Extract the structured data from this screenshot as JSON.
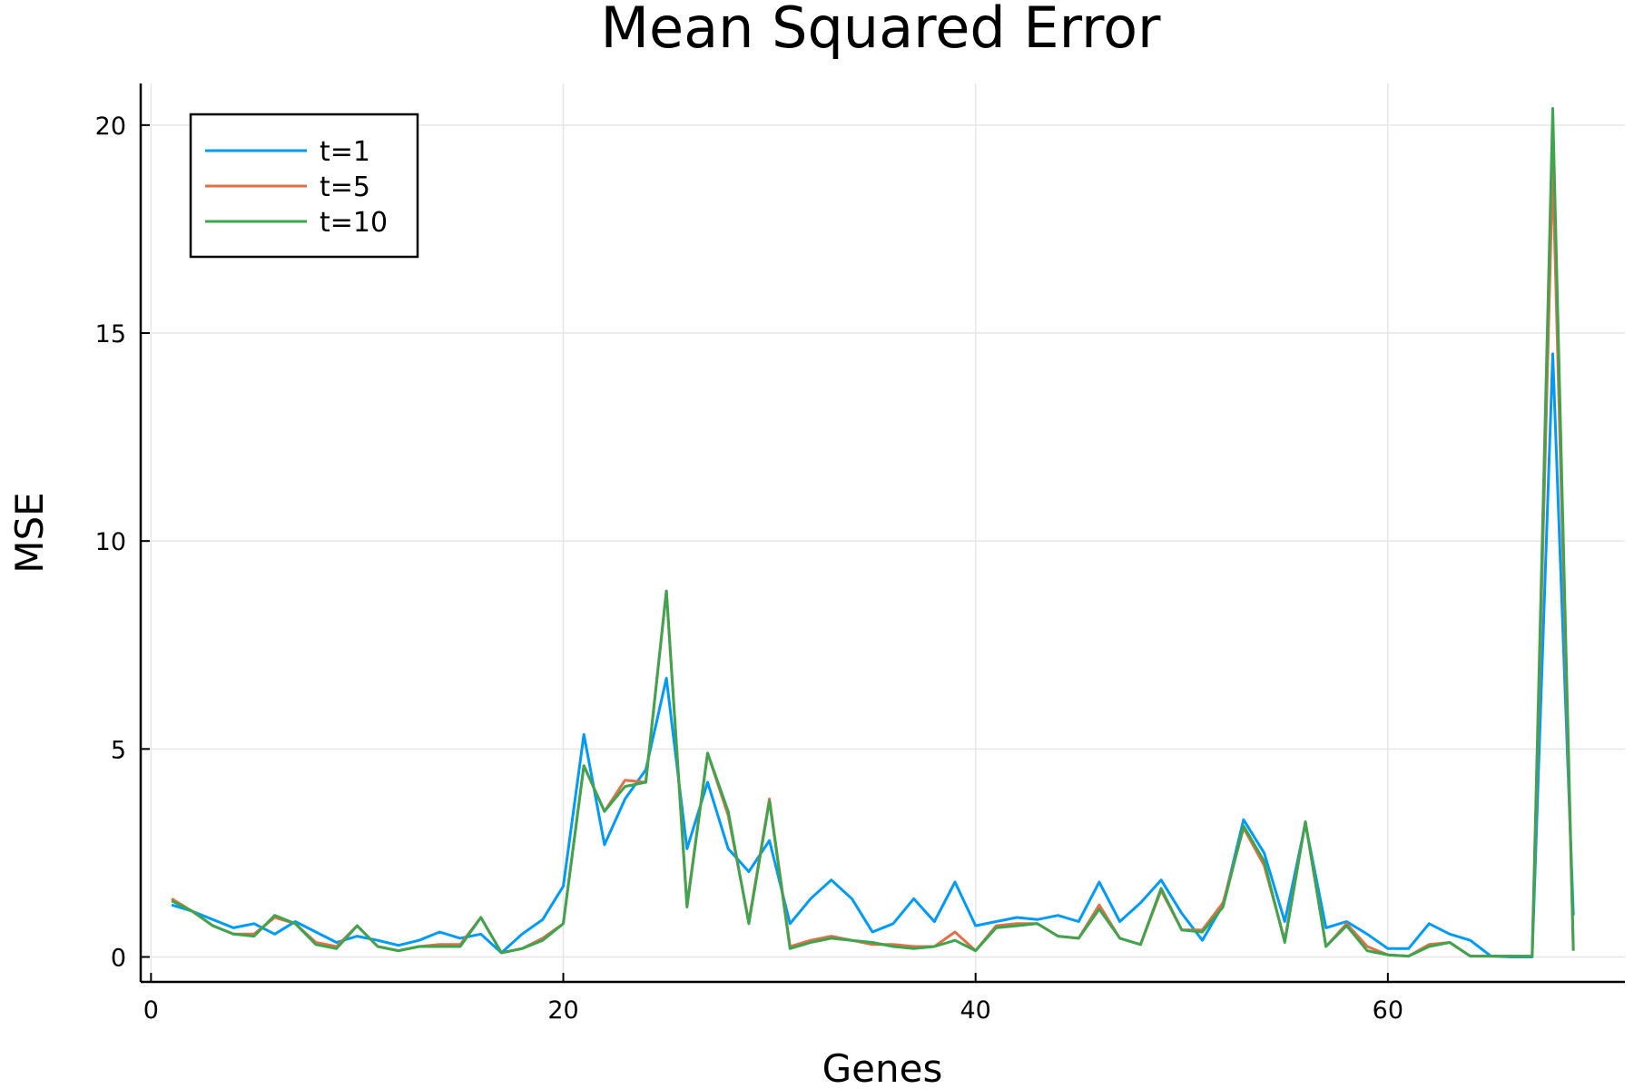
{
  "chart_data": {
    "type": "line",
    "title": "Mean Squared Error",
    "xlabel": "Genes",
    "ylabel": "MSE",
    "xlim": [
      -0.5,
      71.5
    ],
    "ylim": [
      -0.6,
      21
    ],
    "xticks": [
      0,
      20,
      40,
      60
    ],
    "yticks": [
      0,
      5,
      10,
      15,
      20
    ],
    "grid": true,
    "legend_position": "top-left",
    "series": [
      {
        "name": "t=1",
        "color": "#009af9",
        "x": [
          1,
          2,
          3,
          4,
          5,
          6,
          7,
          8,
          9,
          10,
          11,
          12,
          13,
          14,
          15,
          16,
          17,
          18,
          19,
          20,
          21,
          22,
          23,
          24,
          25,
          26,
          27,
          28,
          29,
          30,
          31,
          32,
          33,
          34,
          35,
          36,
          37,
          38,
          39,
          40,
          41,
          42,
          43,
          44,
          45,
          46,
          47,
          48,
          49,
          50,
          51,
          52,
          53,
          54,
          55,
          56,
          57,
          58,
          59,
          60,
          61,
          62,
          63,
          64,
          65,
          66,
          67,
          68,
          69
        ],
        "values": [
          1.25,
          1.1,
          0.9,
          0.7,
          0.8,
          0.55,
          0.85,
          0.6,
          0.35,
          0.5,
          0.4,
          0.28,
          0.4,
          0.6,
          0.45,
          0.55,
          0.1,
          0.55,
          0.9,
          1.7,
          5.35,
          2.7,
          3.8,
          4.5,
          6.7,
          2.6,
          4.2,
          2.6,
          2.05,
          2.8,
          0.8,
          1.4,
          1.85,
          1.4,
          0.6,
          0.8,
          1.4,
          0.85,
          1.8,
          0.75,
          0.85,
          0.95,
          0.9,
          1.0,
          0.85,
          1.8,
          0.85,
          1.3,
          1.85,
          1.05,
          0.4,
          1.25,
          3.3,
          2.5,
          0.85,
          3.2,
          0.7,
          0.85,
          0.55,
          0.2,
          0.2,
          0.8,
          0.55,
          0.4,
          0.02,
          0.0,
          0.0,
          14.5,
          1.0
        ]
      },
      {
        "name": "t=5",
        "color": "#e26f46",
        "x": [
          1,
          2,
          3,
          4,
          5,
          6,
          7,
          8,
          9,
          10,
          11,
          12,
          13,
          14,
          15,
          16,
          17,
          18,
          19,
          20,
          21,
          22,
          23,
          24,
          25,
          26,
          27,
          28,
          29,
          30,
          31,
          32,
          33,
          34,
          35,
          36,
          37,
          38,
          39,
          40,
          41,
          42,
          43,
          44,
          45,
          46,
          47,
          48,
          49,
          50,
          51,
          52,
          53,
          54,
          55,
          56,
          57,
          58,
          59,
          60,
          61,
          62,
          63,
          64,
          65,
          66,
          67,
          68,
          69
        ],
        "values": [
          1.4,
          1.1,
          0.75,
          0.55,
          0.55,
          0.95,
          0.8,
          0.35,
          0.25,
          0.75,
          0.25,
          0.15,
          0.25,
          0.3,
          0.3,
          0.95,
          0.1,
          0.2,
          0.45,
          0.8,
          4.6,
          3.5,
          4.25,
          4.2,
          8.8,
          1.25,
          4.9,
          3.4,
          0.85,
          3.8,
          0.25,
          0.4,
          0.5,
          0.4,
          0.3,
          0.3,
          0.25,
          0.25,
          0.6,
          0.15,
          0.75,
          0.8,
          0.8,
          0.5,
          0.45,
          1.25,
          0.45,
          0.3,
          1.6,
          0.65,
          0.65,
          1.3,
          3.1,
          2.2,
          0.4,
          3.25,
          0.25,
          0.8,
          0.25,
          0.05,
          0.02,
          0.3,
          0.35,
          0.02,
          0.02,
          0.02,
          0.02,
          19.0,
          0.15
        ]
      },
      {
        "name": "t=10",
        "color": "#3ea44e",
        "x": [
          1,
          2,
          3,
          4,
          5,
          6,
          7,
          8,
          9,
          10,
          11,
          12,
          13,
          14,
          15,
          16,
          17,
          18,
          19,
          20,
          21,
          22,
          23,
          24,
          25,
          26,
          27,
          28,
          29,
          30,
          31,
          32,
          33,
          34,
          35,
          36,
          37,
          38,
          39,
          40,
          41,
          42,
          43,
          44,
          45,
          46,
          47,
          48,
          49,
          50,
          51,
          52,
          53,
          54,
          55,
          56,
          57,
          58,
          59,
          60,
          61,
          62,
          63,
          64,
          65,
          66,
          67,
          68,
          69
        ],
        "values": [
          1.35,
          1.1,
          0.75,
          0.55,
          0.5,
          1.0,
          0.8,
          0.3,
          0.2,
          0.75,
          0.25,
          0.15,
          0.25,
          0.25,
          0.25,
          0.95,
          0.1,
          0.2,
          0.4,
          0.8,
          4.6,
          3.5,
          4.1,
          4.2,
          8.8,
          1.2,
          4.9,
          3.5,
          0.8,
          3.75,
          0.2,
          0.35,
          0.45,
          0.4,
          0.35,
          0.25,
          0.2,
          0.25,
          0.4,
          0.15,
          0.7,
          0.75,
          0.8,
          0.5,
          0.45,
          1.15,
          0.45,
          0.3,
          1.65,
          0.65,
          0.6,
          1.2,
          3.15,
          2.3,
          0.35,
          3.25,
          0.25,
          0.75,
          0.15,
          0.05,
          0.02,
          0.25,
          0.35,
          0.02,
          0.02,
          0.02,
          0.02,
          20.4,
          0.15
        ]
      }
    ]
  }
}
